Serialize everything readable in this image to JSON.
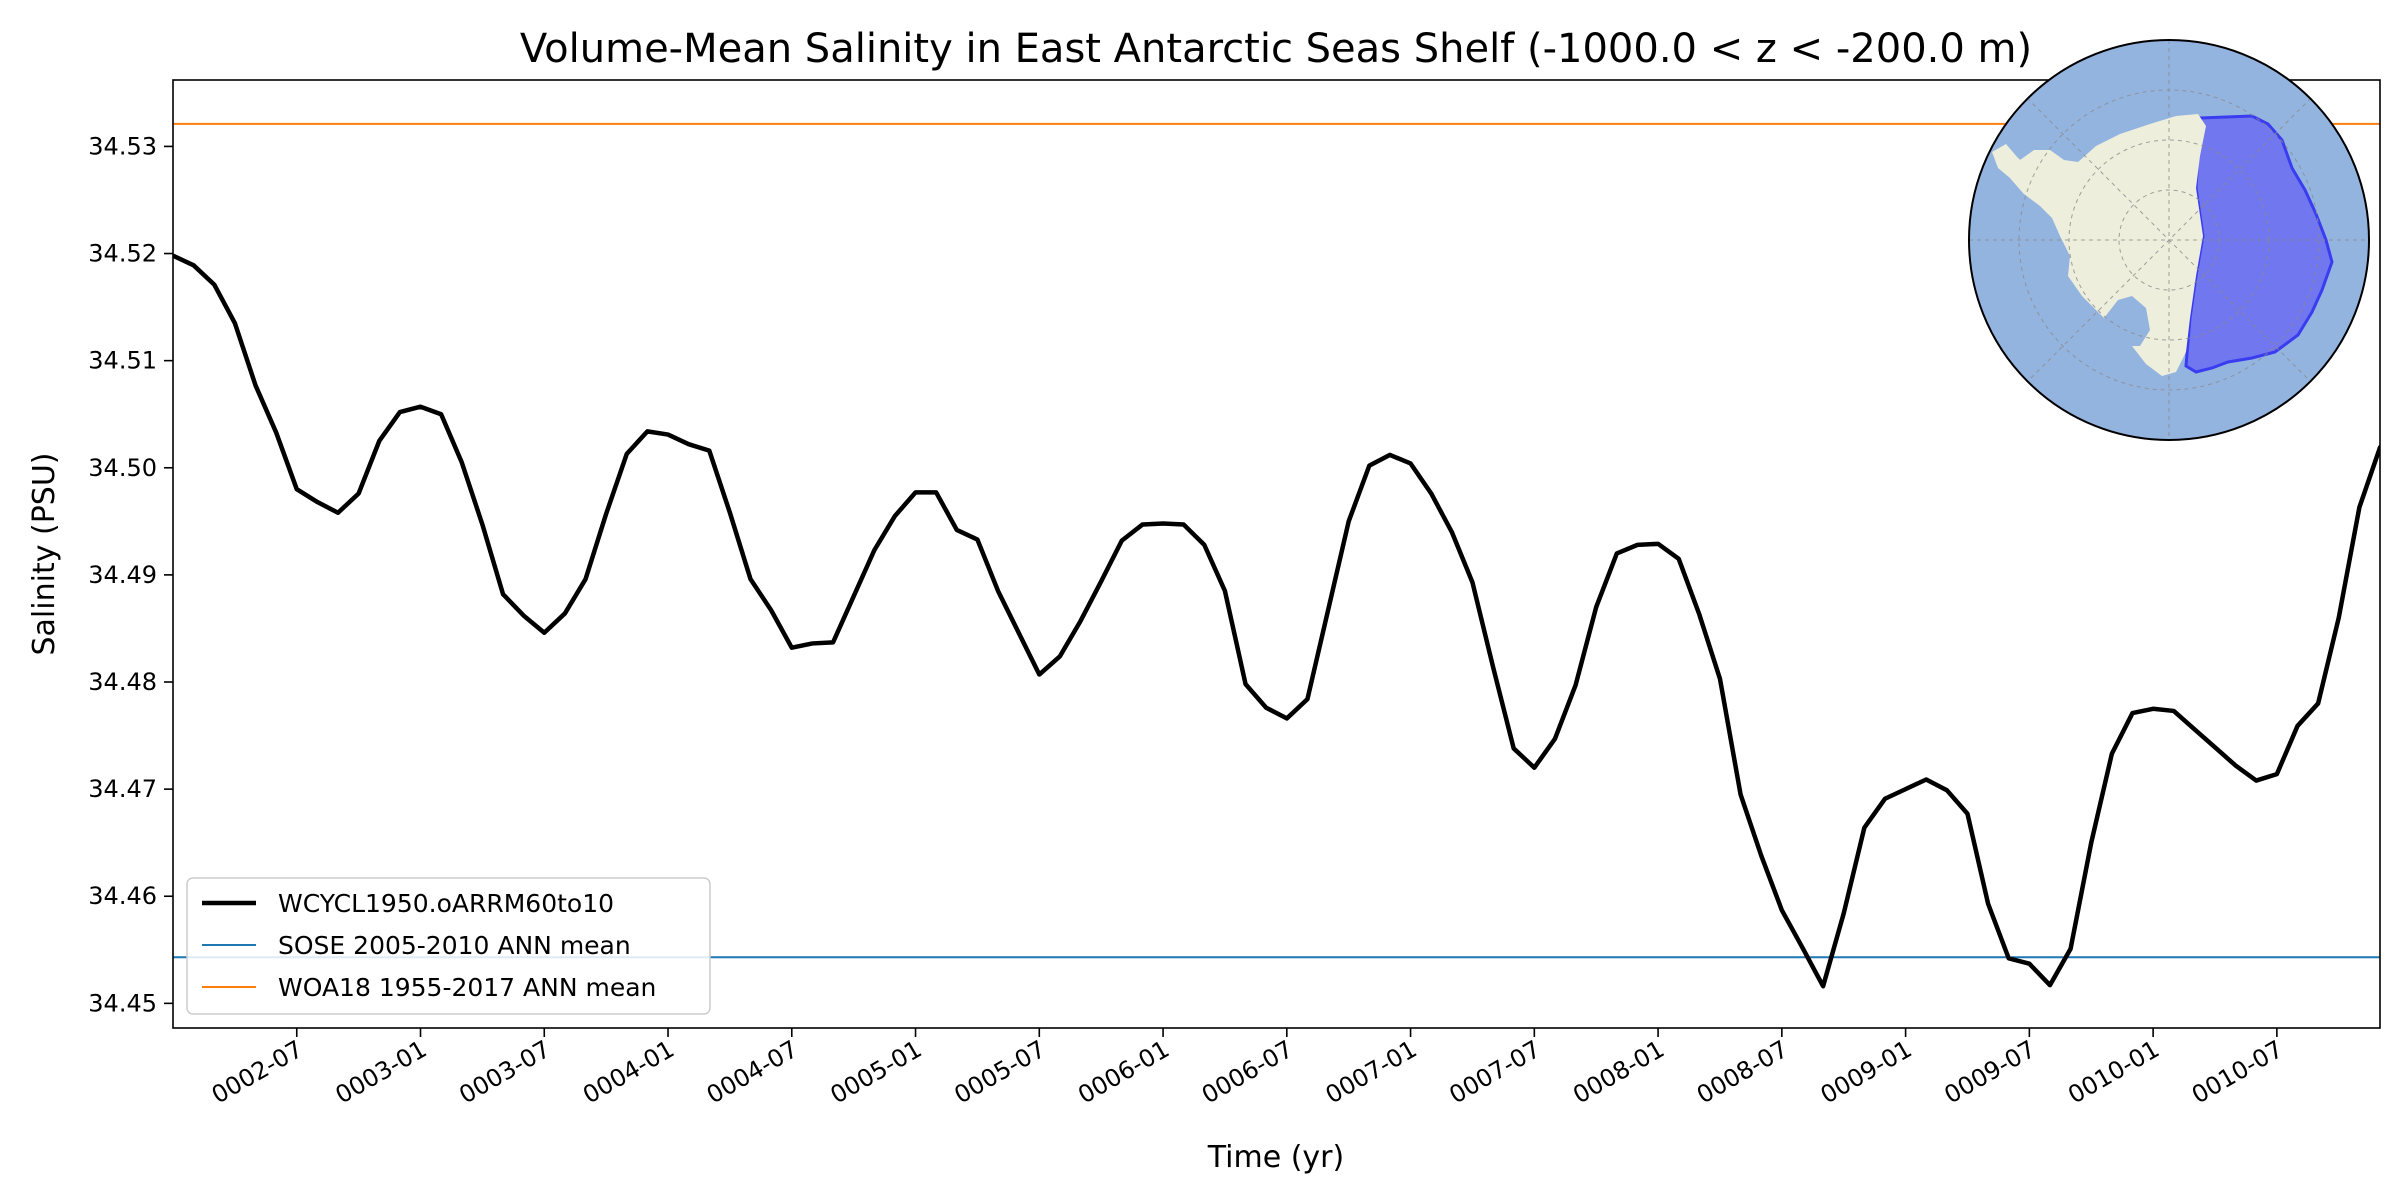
{
  "chart_data": {
    "type": "line",
    "title": "Volume-Mean Salinity in East Antarctic Seas Shelf (-1000.0 < z < -200.0 m)",
    "xlabel": "Time (yr)",
    "ylabel": "Salinity (PSU)",
    "x_start_month_index": 12,
    "x_range_month_index": [
      12,
      119
    ],
    "ylim": [
      34.4477,
      34.5362
    ],
    "yticks": [
      34.45,
      34.46,
      34.47,
      34.48,
      34.49,
      34.5,
      34.51,
      34.52,
      34.53
    ],
    "ytick_labels": [
      "34.45",
      "34.46",
      "34.47",
      "34.48",
      "34.49",
      "34.50",
      "34.51",
      "34.52",
      "34.53"
    ],
    "xticks_month_index": [
      18,
      24,
      30,
      36,
      42,
      48,
      54,
      60,
      66,
      72,
      78,
      84,
      90,
      96,
      102,
      108,
      114
    ],
    "xtick_labels": [
      "0002-07",
      "0003-01",
      "0003-07",
      "0004-01",
      "0004-07",
      "0005-01",
      "0005-07",
      "0006-01",
      "0006-07",
      "0007-01",
      "0007-07",
      "0008-01",
      "0008-07",
      "0009-01",
      "0009-07",
      "0010-01",
      "0010-07"
    ],
    "series": [
      {
        "name": "WCYCL1950.oARRM60to10",
        "color": "#000000",
        "values": [
          34.5198,
          34.5189,
          34.5171,
          34.5135,
          34.5077,
          34.5033,
          34.498,
          34.4968,
          34.4958,
          34.4976,
          34.5025,
          34.5052,
          34.5057,
          34.505,
          34.5005,
          34.4947,
          34.4882,
          34.4862,
          34.4846,
          34.4864,
          34.4896,
          34.4957,
          34.5013,
          34.5034,
          34.5031,
          34.5022,
          34.5016,
          34.4958,
          34.4896,
          34.4867,
          34.4832,
          34.4836,
          34.4837,
          34.488,
          34.4923,
          34.4955,
          34.4977,
          34.4977,
          34.4942,
          34.4933,
          34.4885,
          34.4846,
          34.4807,
          34.4824,
          34.4857,
          34.4894,
          34.4932,
          34.4947,
          34.4948,
          34.4947,
          34.4928,
          34.4885,
          34.4798,
          34.4776,
          34.4766,
          34.4784,
          34.4867,
          34.495,
          34.5002,
          34.5012,
          34.5004,
          34.4976,
          34.494,
          34.4893,
          34.4814,
          34.4738,
          34.472,
          34.4747,
          34.4797,
          34.487,
          34.492,
          34.4928,
          34.4929,
          34.4915,
          34.4863,
          34.4803,
          34.4695,
          34.4638,
          34.4587,
          34.4552,
          34.4516,
          34.4584,
          34.4664,
          34.4691,
          34.47,
          34.4709,
          34.4699,
          34.4677,
          34.4593,
          34.4542,
          34.4537,
          34.4517,
          34.4551,
          34.465,
          34.4733,
          34.4771,
          34.4775,
          34.4773,
          34.4756,
          34.4739,
          34.4722,
          34.4708,
          34.4714,
          34.4759,
          34.478,
          34.486,
          34.4963,
          34.5019,
          34.5026
        ],
        "line_width": 4.5
      },
      {
        "name": "SOSE 2005-2010 ANN mean",
        "color": "#1f77b4",
        "constant": 34.4543,
        "line_width": 2
      },
      {
        "name": "WOA18 1955-2017 ANN mean",
        "color": "#ff7f0e",
        "constant": 34.5321,
        "line_width": 2
      }
    ],
    "legend_position": "lower-left",
    "inset_map": "South polar stereographic map of Antarctica with the East Antarctic Seas shelf region highlighted in blue"
  }
}
